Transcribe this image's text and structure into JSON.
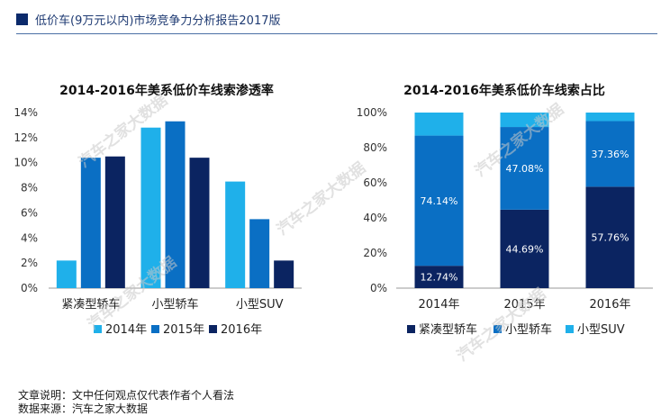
{
  "header": {
    "title": "低价车(9万元以内)市场竞争力分析报告2017版"
  },
  "watermark": "汽车之家大数据",
  "footer": {
    "note": "文章说明：文中任何观点仅代表作者个人看法",
    "source": "数据来源：汽车之家大数据"
  },
  "colors": {
    "light": "#1fb0ea",
    "mid": "#0a6fc4",
    "dark": "#0b2461",
    "brand": "#0b2a6b"
  },
  "chart_data": [
    {
      "type": "bar",
      "title": "2014-2016年美系低价车线索渗透率",
      "categories": [
        "紧凑型轿车",
        "小型轿车",
        "小型SUV"
      ],
      "series": [
        {
          "name": "2014年",
          "values": [
            2.2,
            12.8,
            8.5
          ],
          "color": "#1fb0ea"
        },
        {
          "name": "2015年",
          "values": [
            10.4,
            13.3,
            5.5
          ],
          "color": "#0a6fc4"
        },
        {
          "name": "2016年",
          "values": [
            10.5,
            10.4,
            2.2
          ],
          "color": "#0b2461"
        }
      ],
      "ylim": [
        0,
        14
      ],
      "yticks": [
        "0%",
        "2%",
        "4%",
        "6%",
        "8%",
        "10%",
        "12%",
        "14%"
      ],
      "legend": "bottom"
    },
    {
      "type": "bar",
      "stacked": true,
      "title": "2014-2016年美系低价车线索占比",
      "categories": [
        "2014年",
        "2015年",
        "2016年"
      ],
      "series": [
        {
          "name": "紧凑型轿车",
          "values": [
            12.74,
            44.69,
            57.76
          ],
          "labels": [
            "12.74%",
            "44.69%",
            "57.76%"
          ],
          "color": "#0b2461"
        },
        {
          "name": "小型轿车",
          "values": [
            74.14,
            47.08,
            37.36
          ],
          "labels": [
            "74.14%",
            "47.08%",
            "37.36%"
          ],
          "color": "#0a6fc4"
        },
        {
          "name": "小型SUV",
          "values": [
            13.12,
            8.23,
            4.88
          ],
          "color": "#1fb0ea"
        }
      ],
      "ylim": [
        0,
        100
      ],
      "yticks": [
        "0%",
        "20%",
        "40%",
        "60%",
        "80%",
        "100%"
      ],
      "legend": "bottom"
    }
  ]
}
